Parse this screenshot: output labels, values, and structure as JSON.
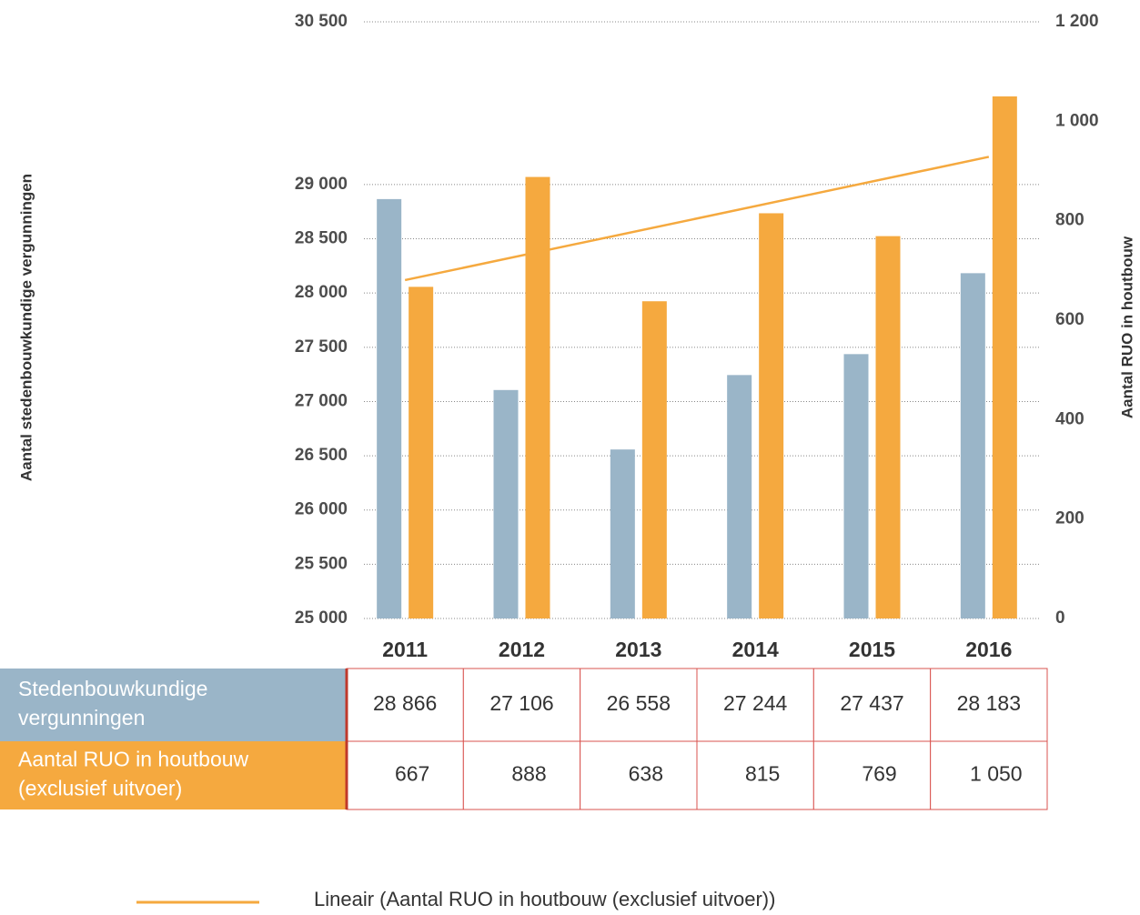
{
  "chart_data": {
    "type": "bar",
    "categories": [
      "2011",
      "2012",
      "2013",
      "2014",
      "2015",
      "2016"
    ],
    "series": [
      {
        "name": "Stedenbouwkundige vergunningen",
        "color": "#9ab5c8",
        "axis": "y",
        "values": [
          28866,
          27106,
          26558,
          27244,
          27437,
          28183
        ],
        "value_labels": [
          "28 866",
          "27 106",
          "26 558",
          "27 244",
          "27 437",
          "28 183"
        ]
      },
      {
        "name": "Aantal RUO in houtbouw (exclusief uitvoer)",
        "color": "#f5a93f",
        "axis": "y2",
        "values": [
          667,
          888,
          638,
          815,
          769,
          1050
        ],
        "value_labels": [
          "667",
          "888",
          "638",
          "815",
          "769",
          "1 050"
        ]
      }
    ],
    "ylabel": "Aantal stedenbouwkundige vergunningen",
    "y2label": "Aantal RUO in houtbouw",
    "ylim": [
      25000,
      30500
    ],
    "yticks": [
      {
        "value": 25000,
        "label": "25 000"
      },
      {
        "value": 25500,
        "label": "25 500"
      },
      {
        "value": 26000,
        "label": "26 000"
      },
      {
        "value": 26500,
        "label": "26 500"
      },
      {
        "value": 27000,
        "label": "27 000"
      },
      {
        "value": 27500,
        "label": "27 500"
      },
      {
        "value": 28000,
        "label": "28 000"
      },
      {
        "value": 28500,
        "label": "28 500"
      },
      {
        "value": 29000,
        "label": "29 000"
      },
      {
        "value": 30500,
        "label": "30 500"
      }
    ],
    "y2lim": [
      0,
      1200
    ],
    "y2ticks": [
      0,
      200,
      400,
      600,
      800,
      {
        "value": 1000,
        "label": "1 000"
      },
      {
        "value": 1200,
        "label": "1 200"
      }
    ],
    "grid": true,
    "trendline_label": "Lineair (Aantal RUO in houtbouw (exclusief uitvoer))",
    "trendline_color": "#f5a93f"
  }
}
